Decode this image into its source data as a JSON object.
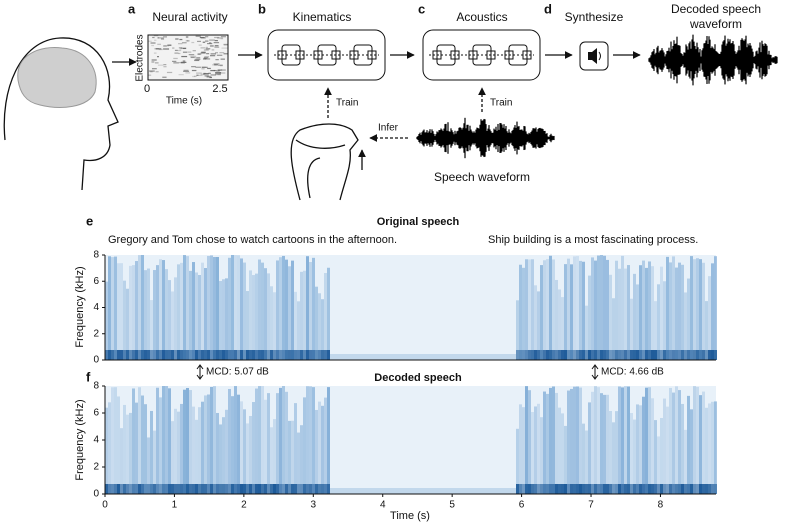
{
  "panel_a": {
    "label": "a",
    "title": "Neural activity",
    "ylabel": "Electrodes",
    "xlabel": "Time (s)",
    "xticks": [
      0,
      2.5
    ]
  },
  "panel_b": {
    "label": "b",
    "title": "Kinematics",
    "train": "Train",
    "infer": "Infer"
  },
  "panel_c": {
    "label": "c",
    "title": "Acoustics",
    "train": "Train",
    "waveform_label": "Speech waveform"
  },
  "panel_d": {
    "label": "d",
    "title": "Synthesize",
    "output_title": [
      "Decoded speech",
      "waveform"
    ]
  },
  "panel_e": {
    "label": "e",
    "title": "Original speech",
    "sentences": [
      "Gregory and Tom chose to watch cartoons in the afternoon.",
      "Ship building is a most fascinating process."
    ],
    "ylabel": "Frequency (kHz)",
    "yticks": [
      0,
      2,
      4,
      6,
      8
    ],
    "ylim": [
      0,
      8
    ],
    "xlim": [
      0,
      8.8
    ]
  },
  "panel_f": {
    "label": "f",
    "title": "Decoded speech",
    "mcd": [
      "MCD: 5.07 dB",
      "MCD: 4.66 dB"
    ],
    "ylabel": "Frequency (kHz)",
    "yticks": [
      0,
      2,
      4,
      6,
      8
    ],
    "ylim": [
      0,
      8
    ],
    "xlabel": "Time (s)",
    "xticks": [
      0,
      1,
      2,
      3,
      4,
      5,
      6,
      7,
      8
    ],
    "xlim": [
      0,
      8.8
    ]
  }
}
